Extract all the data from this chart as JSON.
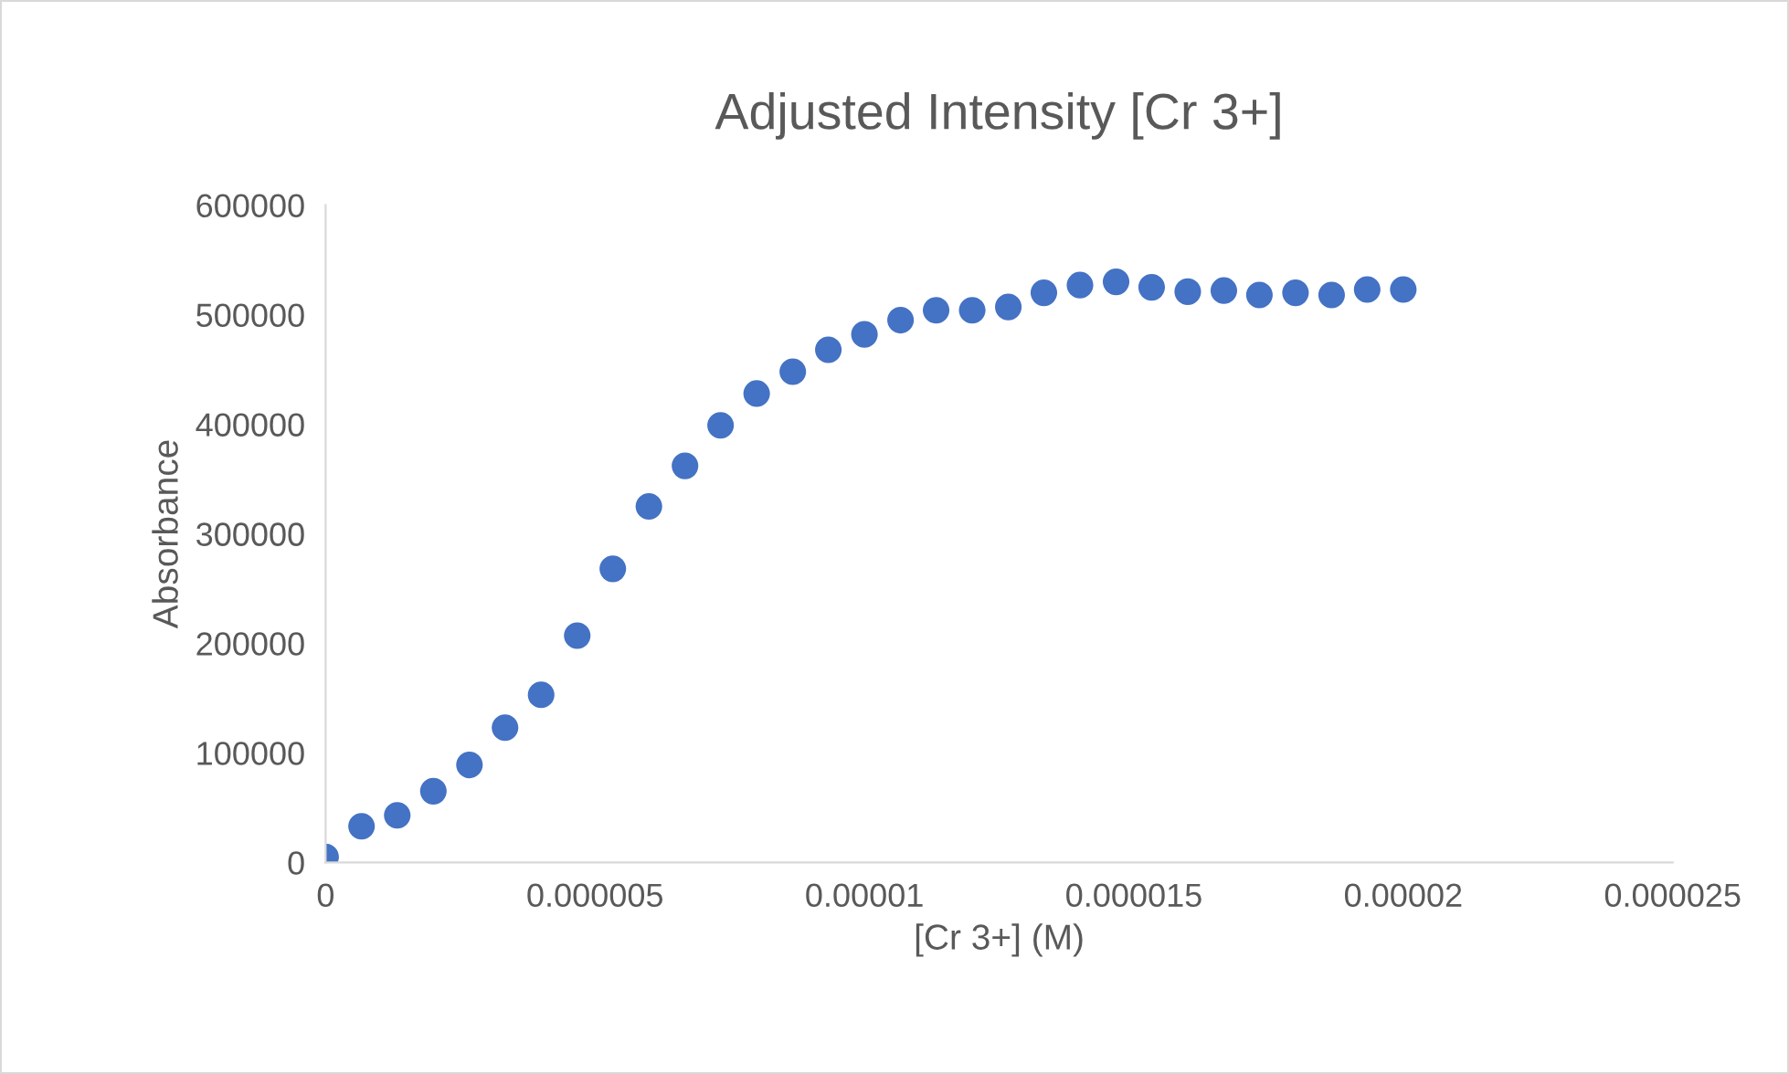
{
  "chart_data": {
    "type": "scatter",
    "title": "Adjusted Intensity [Cr 3+]",
    "xlabel": "[Cr 3+] (M)",
    "ylabel": "Absorbance",
    "x": [
      0,
      6.67e-07,
      1.33e-06,
      2e-06,
      2.67e-06,
      3.33e-06,
      4e-06,
      4.67e-06,
      5.33e-06,
      6e-06,
      6.67e-06,
      7.33e-06,
      8e-06,
      8.67e-06,
      9.33e-06,
      1e-05,
      1.067e-05,
      1.133e-05,
      1.2e-05,
      1.267e-05,
      1.333e-05,
      1.4e-05,
      1.467e-05,
      1.533e-05,
      1.6e-05,
      1.667e-05,
      1.733e-05,
      1.8e-05,
      1.867e-05,
      1.933e-05,
      2e-05
    ],
    "series": [
      {
        "color": "#4472c4",
        "values": [
          5000,
          33000,
          43000,
          65000,
          89000,
          123000,
          153000,
          207000,
          268000,
          325000,
          362000,
          399000,
          428000,
          448000,
          468000,
          482000,
          495000,
          504000,
          504000,
          507000,
          520000,
          527000,
          530000,
          525000,
          521000,
          522000,
          518000,
          520000,
          518000,
          523000,
          523000
        ]
      }
    ],
    "xlim": [
      0,
      2.5e-05
    ],
    "xticks": [
      0,
      {
        "value": 5e-06,
        "label": "0.000005"
      },
      {
        "value": 1e-05,
        "label": "0.00001"
      },
      {
        "value": 1.5e-05,
        "label": "0.000015"
      },
      {
        "value": 2e-05,
        "label": "0.00002"
      },
      {
        "value": 2.5e-05,
        "label": "0.000025"
      }
    ],
    "ylim": [
      0,
      600000
    ],
    "yticks": [
      0,
      100000,
      200000,
      300000,
      400000,
      500000,
      600000
    ],
    "marker": "circle",
    "grid": false,
    "legend": false
  }
}
